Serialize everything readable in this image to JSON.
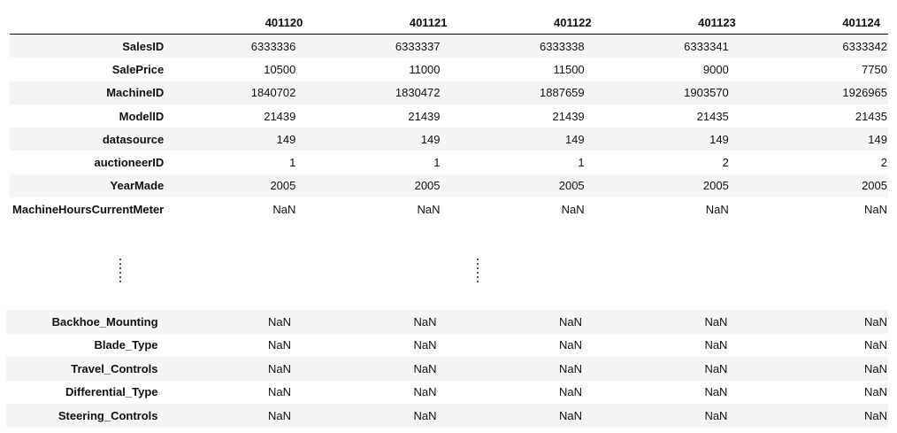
{
  "columns": [
    "401120",
    "401121",
    "401122",
    "401123",
    "401124"
  ],
  "top_rows": [
    {
      "label": "SalesID",
      "values": [
        "6333336",
        "6333337",
        "6333338",
        "6333341",
        "6333342"
      ]
    },
    {
      "label": "SalePrice",
      "values": [
        "10500",
        "11000",
        "11500",
        "9000",
        "7750"
      ]
    },
    {
      "label": "MachineID",
      "values": [
        "1840702",
        "1830472",
        "1887659",
        "1903570",
        "1926965"
      ]
    },
    {
      "label": "ModelID",
      "values": [
        "21439",
        "21439",
        "21439",
        "21435",
        "21435"
      ]
    },
    {
      "label": "datasource",
      "values": [
        "149",
        "149",
        "149",
        "149",
        "149"
      ]
    },
    {
      "label": "auctioneerID",
      "values": [
        "1",
        "1",
        "1",
        "2",
        "2"
      ]
    },
    {
      "label": "YearMade",
      "values": [
        "2005",
        "2005",
        "2005",
        "2005",
        "2005"
      ]
    },
    {
      "label": "MachineHoursCurrentMeter",
      "values": [
        "NaN",
        "NaN",
        "NaN",
        "NaN",
        "NaN"
      ]
    }
  ],
  "bottom_rows": [
    {
      "label": "Backhoe_Mounting",
      "values": [
        "NaN",
        "NaN",
        "NaN",
        "NaN",
        "NaN"
      ]
    },
    {
      "label": "Blade_Type",
      "values": [
        "NaN",
        "NaN",
        "NaN",
        "NaN",
        "NaN"
      ]
    },
    {
      "label": "Travel_Controls",
      "values": [
        "NaN",
        "NaN",
        "NaN",
        "NaN",
        "NaN"
      ]
    },
    {
      "label": "Differential_Type",
      "values": [
        "NaN",
        "NaN",
        "NaN",
        "NaN",
        "NaN"
      ]
    },
    {
      "label": "Steering_Controls",
      "values": [
        "NaN",
        "NaN",
        "NaN",
        "NaN",
        "NaN"
      ]
    }
  ]
}
